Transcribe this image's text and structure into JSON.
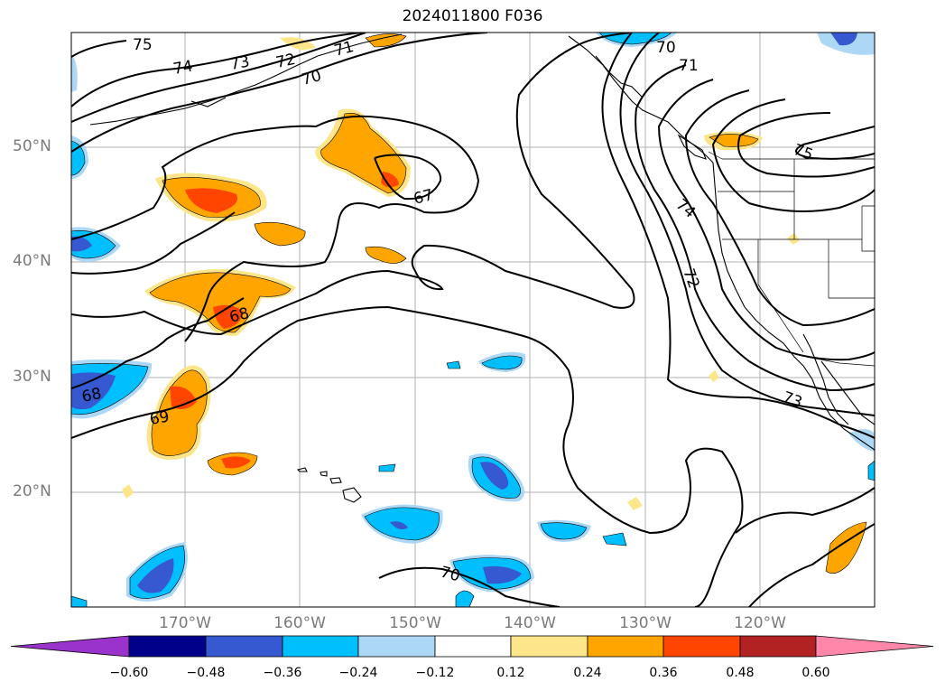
{
  "title": "2024011800 F036",
  "lat_labels": [
    "50°N",
    "40°N",
    "30°N",
    "20°N"
  ],
  "lon_labels": [
    "170°W",
    "160°W",
    "150°W",
    "140°W",
    "130°W",
    "120°W"
  ],
  "contour_labels": [
    "75",
    "74",
    "73",
    "72",
    "71",
    "70",
    "67",
    "68",
    "68",
    "69",
    "70",
    "70",
    "71",
    "75",
    "74",
    "72",
    "73"
  ],
  "colorbar": {
    "ticks": [
      "−0.60",
      "−0.48",
      "−0.36",
      "−0.24",
      "−0.12",
      "0.12",
      "0.24",
      "0.36",
      "0.48",
      "0.60"
    ],
    "colors": [
      "#9933cc",
      "#00008b",
      "#3658d0",
      "#00bfff",
      "#add8f5",
      "#ffffff",
      "#fde68a",
      "#ffa500",
      "#ff4500",
      "#b22222",
      "#ff88aa"
    ]
  }
}
